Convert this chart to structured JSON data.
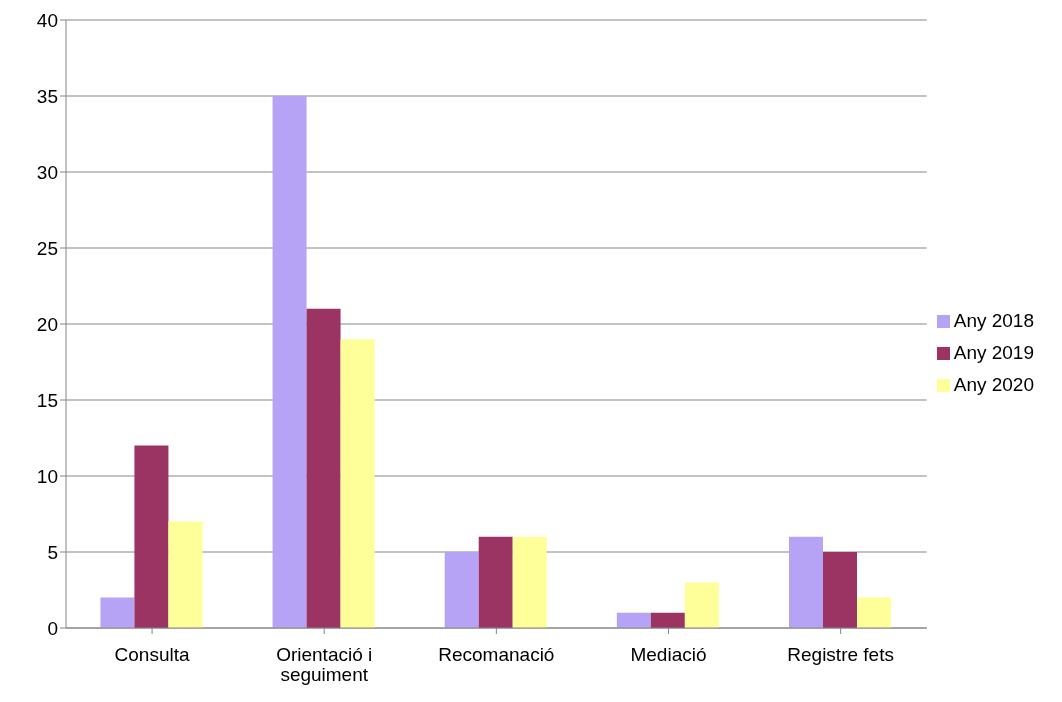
{
  "chart_data": {
    "type": "bar",
    "categories": [
      "Consulta",
      "Orientació i seguiment",
      "Recomanació",
      "Mediació",
      "Registre fets"
    ],
    "series": [
      {
        "name": "Any 2018",
        "color": "#b7a3f5",
        "values": [
          2,
          35,
          5,
          1,
          6
        ]
      },
      {
        "name": "Any 2019",
        "color": "#9b3363",
        "values": [
          12,
          21,
          6,
          1,
          5
        ]
      },
      {
        "name": "Any 2020",
        "color": "#ffff99",
        "values": [
          7,
          19,
          6,
          3,
          2
        ]
      }
    ],
    "ylim": [
      0,
      40
    ],
    "yticks": [
      0,
      5,
      10,
      15,
      20,
      25,
      30,
      35,
      40
    ],
    "grid": "y",
    "legend": "right"
  }
}
